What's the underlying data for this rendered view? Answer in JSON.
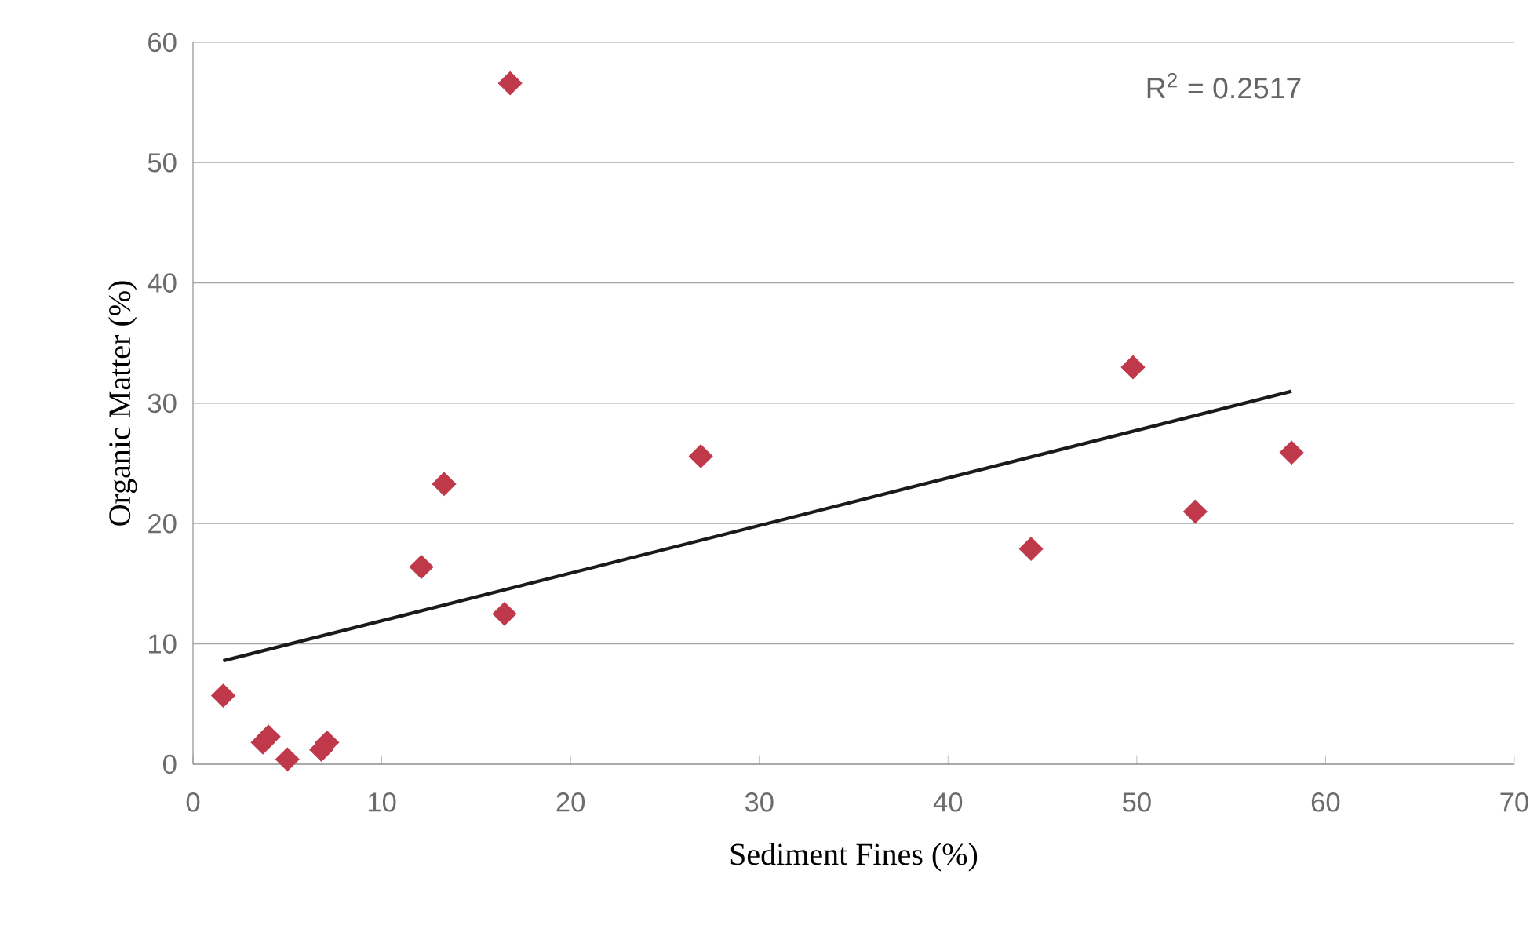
{
  "chart_data": {
    "type": "scatter",
    "xlabel": "Sediment Fines (%)",
    "ylabel": "Organic Matter (%)",
    "xlim": [
      0,
      70
    ],
    "ylim": [
      0,
      60
    ],
    "xticks": [
      0,
      10,
      20,
      30,
      40,
      50,
      60,
      70
    ],
    "yticks": [
      0,
      10,
      20,
      30,
      40,
      50,
      60
    ],
    "grid": "y",
    "annotations": [
      "R$^{2}$ = 0.2517"
    ],
    "series": [
      {
        "color": "#c0394b",
        "marker": "diamond",
        "x": [
          1.6,
          3.7,
          4.0,
          5.0,
          6.8,
          7.1,
          12.1,
          13.3,
          16.5,
          16.8,
          26.9,
          44.4,
          49.8,
          53.1,
          58.2
        ],
        "values": [
          5.7,
          1.8,
          2.3,
          0.4,
          1.2,
          1.8,
          16.4,
          23.3,
          12.5,
          56.6,
          25.6,
          17.9,
          33.0,
          21.0,
          25.9
        ]
      },
      {
        "type": "line",
        "color": "#1a1a1a",
        "marker": "none",
        "line_style": "solid",
        "x": [
          1.6,
          58.2
        ],
        "values": [
          8.6,
          31.0
        ]
      }
    ]
  }
}
